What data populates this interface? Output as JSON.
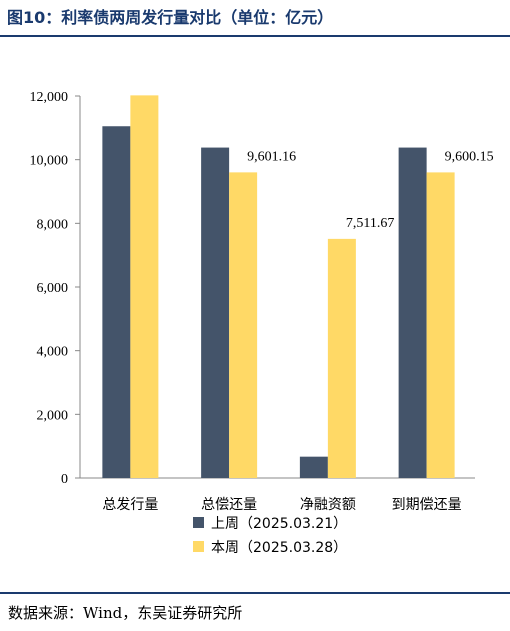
{
  "header": {
    "title": "图10：利率债两周发行量对比（单位：亿元）"
  },
  "footer": {
    "source": "数据来源：Wind，东吴证券研究所"
  },
  "colors": {
    "series1": "#44546a",
    "series2": "#ffd966",
    "rule": "#1a3a6e"
  },
  "chart_data": {
    "type": "bar",
    "categories": [
      "总发行量",
      "总偿还量",
      "净融资额",
      "到期偿还量"
    ],
    "series": [
      {
        "name": "上周（2025.03.21）",
        "values": [
          11050,
          10380,
          670,
          10380
        ]
      },
      {
        "name": "本周（2025.03.28）",
        "values": [
          12020,
          9601.16,
          7511.67,
          9600.15
        ]
      }
    ],
    "data_labels": [
      {
        "category": "总偿还量",
        "series": 1,
        "text": "9,601.16"
      },
      {
        "category": "净融资额",
        "series": 1,
        "text": "7,511.67"
      },
      {
        "category": "到期偿还量",
        "series": 1,
        "text": "9,600.15"
      }
    ],
    "ylim": [
      0,
      12000
    ],
    "yticks": [
      "0",
      "2,000",
      "4,000",
      "6,000",
      "8,000",
      "10,000",
      "12,000"
    ],
    "grid": false,
    "legend": "bottom"
  }
}
